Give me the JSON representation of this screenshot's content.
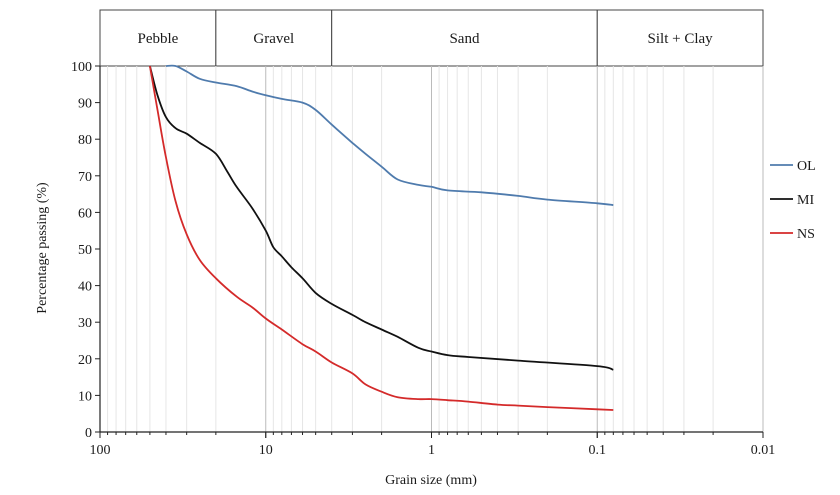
{
  "chart_data": {
    "type": "line",
    "title": "",
    "xlabel": "Grain size (mm)",
    "ylabel": "Percentage passing (%)",
    "x_scale": "log",
    "x_reversed": true,
    "xlim": [
      100,
      0.01
    ],
    "ylim": [
      0,
      100
    ],
    "x_ticks": [
      "100",
      "10",
      "1",
      "0.1",
      "0.01"
    ],
    "y_ticks": [
      "0",
      "10",
      "20",
      "30",
      "40",
      "50",
      "60",
      "70",
      "80",
      "90",
      "100"
    ],
    "grid": "vertical minor log gridlines",
    "legend_position": "right",
    "size_classes": [
      {
        "label": "Pebble",
        "from_mm": 100,
        "to_mm": 20
      },
      {
        "label": "Gravel",
        "from_mm": 20,
        "to_mm": 4
      },
      {
        "label": "Sand",
        "from_mm": 4,
        "to_mm": 0.1
      },
      {
        "label": "Silt + Clay",
        "from_mm": 0.1,
        "to_mm": 0.01
      }
    ],
    "series": [
      {
        "name": "OL",
        "color": "#4f7bad",
        "points": [
          [
            40,
            100
          ],
          [
            35,
            100
          ],
          [
            30,
            98.5
          ],
          [
            25,
            96.5
          ],
          [
            20,
            95.5
          ],
          [
            15,
            94.5
          ],
          [
            12,
            93
          ],
          [
            10,
            92
          ],
          [
            8,
            91
          ],
          [
            6,
            90
          ],
          [
            5,
            88
          ],
          [
            4,
            84
          ],
          [
            3,
            79
          ],
          [
            2.5,
            76
          ],
          [
            2,
            72.5
          ],
          [
            1.6,
            69
          ],
          [
            1.2,
            67.5
          ],
          [
            1,
            67
          ],
          [
            0.8,
            66
          ],
          [
            0.5,
            65.5
          ],
          [
            0.3,
            64.5
          ],
          [
            0.2,
            63.5
          ],
          [
            0.1,
            62.5
          ],
          [
            0.08,
            62
          ]
        ]
      },
      {
        "name": "MI",
        "color": "#111111",
        "points": [
          [
            50,
            100
          ],
          [
            45,
            92
          ],
          [
            40,
            86
          ],
          [
            35,
            83
          ],
          [
            30,
            81.5
          ],
          [
            25,
            79
          ],
          [
            20,
            76
          ],
          [
            17,
            71
          ],
          [
            15,
            67
          ],
          [
            12,
            61
          ],
          [
            10,
            55
          ],
          [
            9,
            50.5
          ],
          [
            8,
            48
          ],
          [
            7,
            45
          ],
          [
            6,
            42
          ],
          [
            5,
            38
          ],
          [
            4,
            35
          ],
          [
            3,
            32
          ],
          [
            2.5,
            30
          ],
          [
            2,
            28
          ],
          [
            1.6,
            26
          ],
          [
            1.2,
            23
          ],
          [
            1,
            22
          ],
          [
            0.8,
            21
          ],
          [
            0.6,
            20.5
          ],
          [
            0.3,
            19.5
          ],
          [
            0.1,
            18
          ],
          [
            0.08,
            17
          ]
        ]
      },
      {
        "name": "NS",
        "color": "#d42a2a",
        "points": [
          [
            50,
            100
          ],
          [
            45,
            88
          ],
          [
            40,
            75
          ],
          [
            35,
            63
          ],
          [
            30,
            54
          ],
          [
            25,
            47
          ],
          [
            20,
            42
          ],
          [
            15,
            37
          ],
          [
            12,
            34
          ],
          [
            10,
            31
          ],
          [
            8,
            28
          ],
          [
            6,
            24
          ],
          [
            5,
            22
          ],
          [
            4,
            19
          ],
          [
            3,
            16
          ],
          [
            2.5,
            13
          ],
          [
            2,
            11
          ],
          [
            1.6,
            9.5
          ],
          [
            1.2,
            9
          ],
          [
            1,
            9
          ],
          [
            0.8,
            8.7
          ],
          [
            0.6,
            8.3
          ],
          [
            0.4,
            7.5
          ],
          [
            0.3,
            7.2
          ],
          [
            0.2,
            6.8
          ],
          [
            0.1,
            6.2
          ],
          [
            0.08,
            6
          ]
        ]
      }
    ]
  }
}
